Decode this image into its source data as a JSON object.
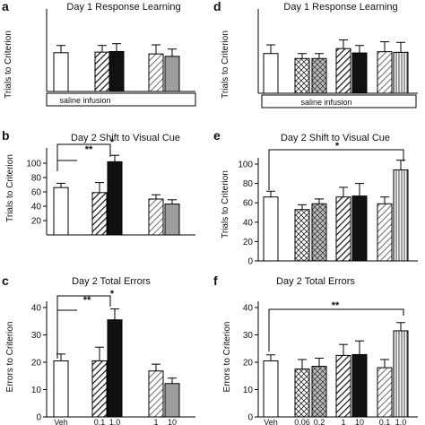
{
  "figure": {
    "panels": [
      {
        "letter": "a",
        "title": "Day 1 Response Learning",
        "ylabel": "Trials to Criterion",
        "infusion": "saline infusion"
      },
      {
        "letter": "b",
        "title": "Day 2 Shift to Visual Cue",
        "ylabel": "Trials to Criterion"
      },
      {
        "letter": "c",
        "title": "Day 2 Total Errors",
        "ylabel": "Errors to Criterion"
      },
      {
        "letter": "d",
        "title": "Day 1 Response Learning",
        "ylabel": "Trials to Criterion",
        "infusion": "saline infusion"
      },
      {
        "letter": "e",
        "title": "Day 2 Shift to Visual Cue",
        "ylabel": "Trials to Criterion"
      },
      {
        "letter": "f",
        "title": "Day 2 Total Errors",
        "ylabel": "Errors to Criterion"
      }
    ]
  },
  "chart_data": [
    {
      "panel": "a",
      "type": "bar",
      "title": "Day 1 Response Learning",
      "ylabel": "Trials to Criterion",
      "ylim": [
        0,
        120
      ],
      "bars": [
        {
          "value": 64,
          "err": 12,
          "fill": "white"
        },
        {
          "value": 65,
          "err": 11,
          "fill": "dark-hatch"
        },
        {
          "value": 66,
          "err": 13,
          "fill": "black"
        },
        {
          "value": 62,
          "err": 15,
          "fill": "light-hatch"
        },
        {
          "value": 58,
          "err": 12,
          "fill": "gray"
        }
      ]
    },
    {
      "panel": "b",
      "type": "bar",
      "title": "Day 2 Shift to Visual Cue",
      "ylabel": "Trials to Criterion",
      "ylim": [
        0,
        120
      ],
      "yticks": [
        20,
        40,
        60,
        80,
        100
      ],
      "bars": [
        {
          "value": 66,
          "err": 6,
          "fill": "white"
        },
        {
          "value": 59,
          "err": 14,
          "fill": "dark-hatch"
        },
        {
          "value": 102,
          "err": 9,
          "fill": "black"
        },
        {
          "value": 50,
          "err": 6,
          "fill": "light-hatch"
        },
        {
          "value": 43,
          "err": 6,
          "fill": "gray"
        }
      ],
      "annotations": [
        "**",
        "*"
      ]
    },
    {
      "panel": "c",
      "type": "bar",
      "title": "Day 2 Total Errors",
      "ylabel": "Errors to Criterion",
      "ylim": [
        0,
        40
      ],
      "yticks": [
        0,
        10,
        20,
        30,
        40
      ],
      "bars": [
        {
          "value": 20.5,
          "err": 2.5,
          "fill": "white",
          "xtick": "Veh"
        },
        {
          "value": 20.5,
          "err": 5,
          "fill": "dark-hatch",
          "xtick": "0.1"
        },
        {
          "value": 35.5,
          "err": 4,
          "fill": "black",
          "xtick": "1.0"
        },
        {
          "value": 16.8,
          "err": 2.5,
          "fill": "light-hatch",
          "xtick": "1"
        },
        {
          "value": 12.2,
          "err": 2,
          "fill": "gray",
          "xtick": "10"
        }
      ],
      "annotations": [
        "**",
        "*"
      ]
    },
    {
      "panel": "d",
      "type": "bar",
      "title": "Day 1 Response Learning",
      "ylabel": "Trials to Criterion",
      "ylim": [
        0,
        120
      ],
      "bars": [
        {
          "value": 64,
          "err": 14,
          "fill": "white"
        },
        {
          "value": 56,
          "err": 8,
          "fill": "crosshatch-white"
        },
        {
          "value": 56,
          "err": 8,
          "fill": "crosshatch-gray"
        },
        {
          "value": 72,
          "err": 14,
          "fill": "dark-hatch"
        },
        {
          "value": 65,
          "err": 12,
          "fill": "black"
        },
        {
          "value": 67,
          "err": 16,
          "fill": "light-hatch"
        },
        {
          "value": 66,
          "err": 16,
          "fill": "vertical-lines"
        }
      ]
    },
    {
      "panel": "e",
      "type": "bar",
      "title": "Day 2 Shift to Visual Cue",
      "ylabel": "Trials to Criterion",
      "ylim": [
        0,
        120
      ],
      "yticks": [
        0,
        20,
        40,
        60,
        80,
        100
      ],
      "bars": [
        {
          "value": 66,
          "err": 6,
          "fill": "white"
        },
        {
          "value": 53,
          "err": 5,
          "fill": "crosshatch-white"
        },
        {
          "value": 59,
          "err": 5,
          "fill": "crosshatch-gray"
        },
        {
          "value": 66,
          "err": 10,
          "fill": "dark-hatch"
        },
        {
          "value": 67,
          "err": 13,
          "fill": "black"
        },
        {
          "value": 59,
          "err": 7,
          "fill": "light-hatch"
        },
        {
          "value": 94,
          "err": 10,
          "fill": "vertical-lines"
        }
      ],
      "annotations": [
        "*"
      ]
    },
    {
      "panel": "f",
      "type": "bar",
      "title": "Day 2 Total Errors",
      "ylabel": "Errors to Criterion",
      "ylim": [
        0,
        40
      ],
      "yticks": [
        0,
        10,
        20,
        30,
        40
      ],
      "bars": [
        {
          "value": 20.5,
          "err": 2.2,
          "fill": "white",
          "xtick": "Veh"
        },
        {
          "value": 17.5,
          "err": 3.5,
          "fill": "crosshatch-white",
          "xtick": "0.06"
        },
        {
          "value": 18.5,
          "err": 3,
          "fill": "crosshatch-gray",
          "xtick": "0.2"
        },
        {
          "value": 22.5,
          "err": 4,
          "fill": "dark-hatch",
          "xtick": "1"
        },
        {
          "value": 22.8,
          "err": 5,
          "fill": "black",
          "xtick": "10"
        },
        {
          "value": 18,
          "err": 3,
          "fill": "light-hatch",
          "xtick": "0.1"
        },
        {
          "value": 31.5,
          "err": 3,
          "fill": "vertical-lines",
          "xtick": "1.0"
        }
      ],
      "annotations": [
        "**"
      ]
    }
  ]
}
